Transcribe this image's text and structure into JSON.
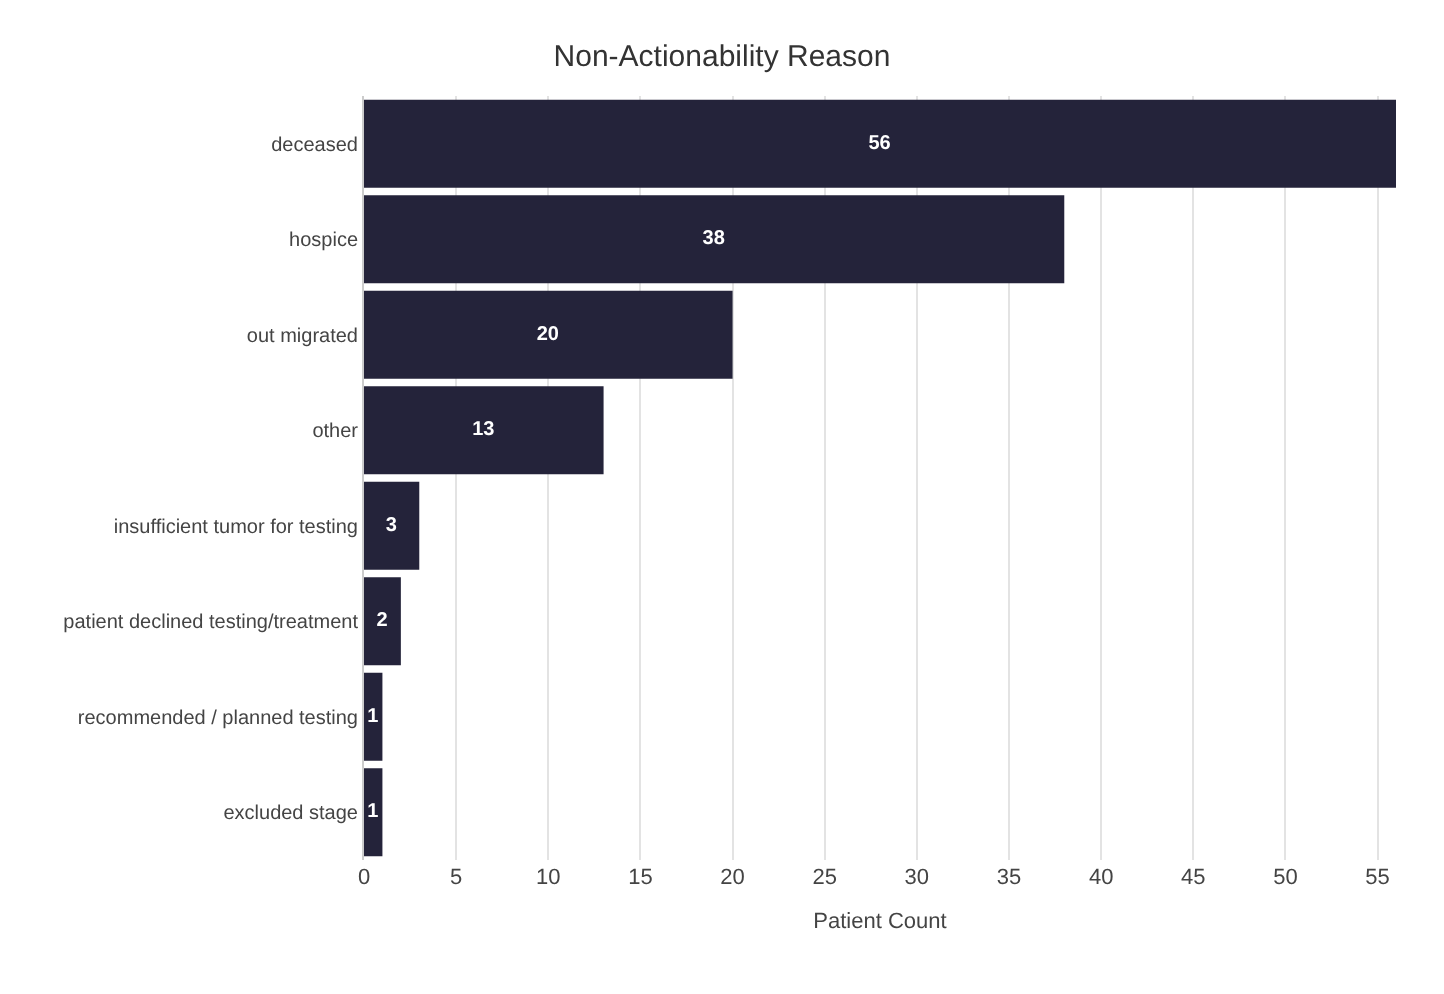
{
  "chart_data": {
    "type": "bar",
    "title": "Non-Actionability Reason",
    "xlabel": "Patient Count",
    "orientation": "horizontal",
    "categories": [
      "deceased",
      "hospice",
      "out migrated",
      "other",
      "insufficient tumor for testing",
      "patient declined testing/treatment",
      "recommended / planned testing",
      "excluded stage"
    ],
    "values": [
      56,
      38,
      20,
      13,
      3,
      2,
      1,
      1
    ],
    "color": "#24233a",
    "xlim": [
      0,
      56
    ],
    "xticks": [
      0,
      5,
      10,
      15,
      20,
      25,
      30,
      35,
      40,
      45,
      50,
      55
    ],
    "grid": "x",
    "data_labels": true
  }
}
